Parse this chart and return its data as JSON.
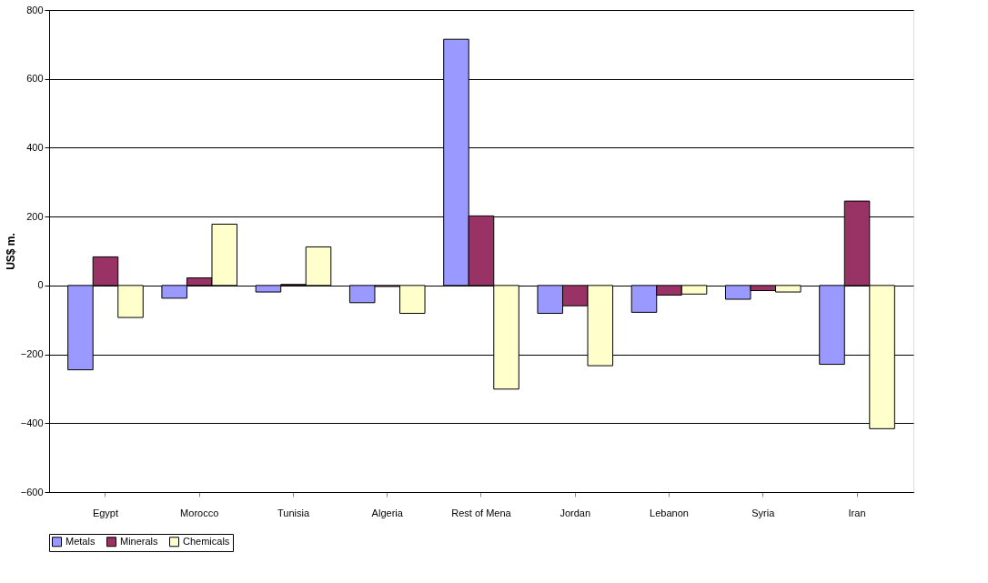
{
  "chart_data": {
    "type": "bar",
    "ylabel": "US$ m.",
    "categories": [
      "Egypt",
      "Morocco",
      "Tunisia",
      "Algeria",
      "Rest of Mena",
      "Jordan",
      "Lebanon",
      "Syria",
      "Iran"
    ],
    "series": [
      {
        "name": "Metals",
        "color": "#9999ff",
        "values": [
          -245,
          -37,
          -19,
          -50,
          715,
          -81,
          -78,
          -40,
          -229
        ]
      },
      {
        "name": "Minerals",
        "color": "#993366",
        "values": [
          83,
          22,
          3,
          -3,
          202,
          -59,
          -28,
          -15,
          245
        ]
      },
      {
        "name": "Chemicals",
        "color": "#ffffcc",
        "values": [
          -93,
          178,
          112,
          -81,
          -301,
          -233,
          -25,
          -19,
          -416
        ]
      }
    ],
    "ylim": [
      -600,
      800
    ],
    "yticks": [
      -600,
      -400,
      -200,
      0,
      200,
      400,
      600,
      800
    ],
    "grid": "y",
    "legend": "bottom"
  }
}
